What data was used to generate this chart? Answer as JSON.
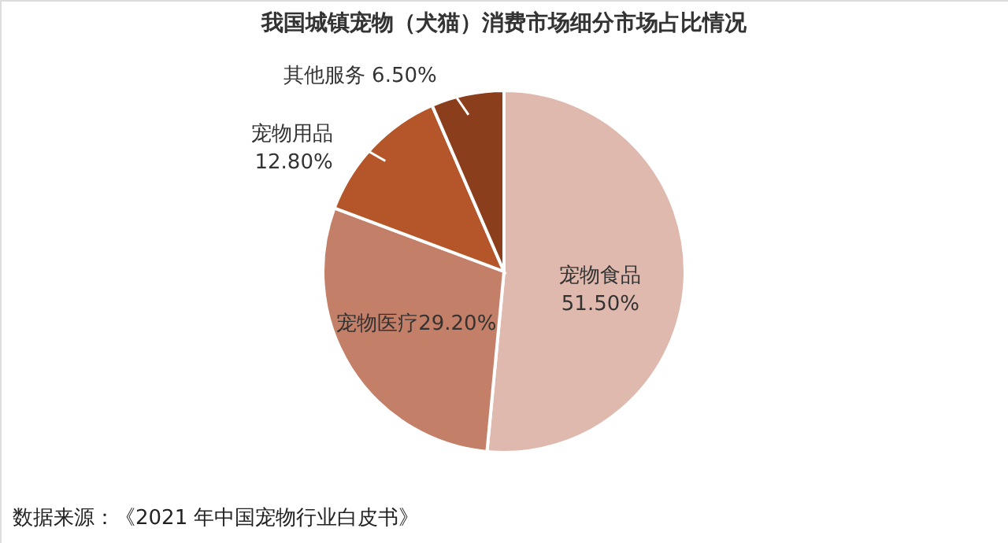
{
  "chart_data": {
    "type": "pie",
    "title": "我国城镇宠物（犬猫）消费市场细分市场占比情况",
    "categories": [
      "宠物食品",
      "宠物医疗",
      "宠物用品",
      "其他服务"
    ],
    "values": [
      51.5,
      29.2,
      12.8,
      6.5
    ],
    "value_labels": [
      "51.50%",
      "29.20%",
      "12.80%",
      "6.50%"
    ],
    "colors": [
      "#dfb9ae",
      "#c47f68",
      "#b5562a",
      "#8b3e1c"
    ],
    "legend": false,
    "annotations": [
      "数据来源：《2021 年中国宠物行业白皮书》"
    ]
  }
}
